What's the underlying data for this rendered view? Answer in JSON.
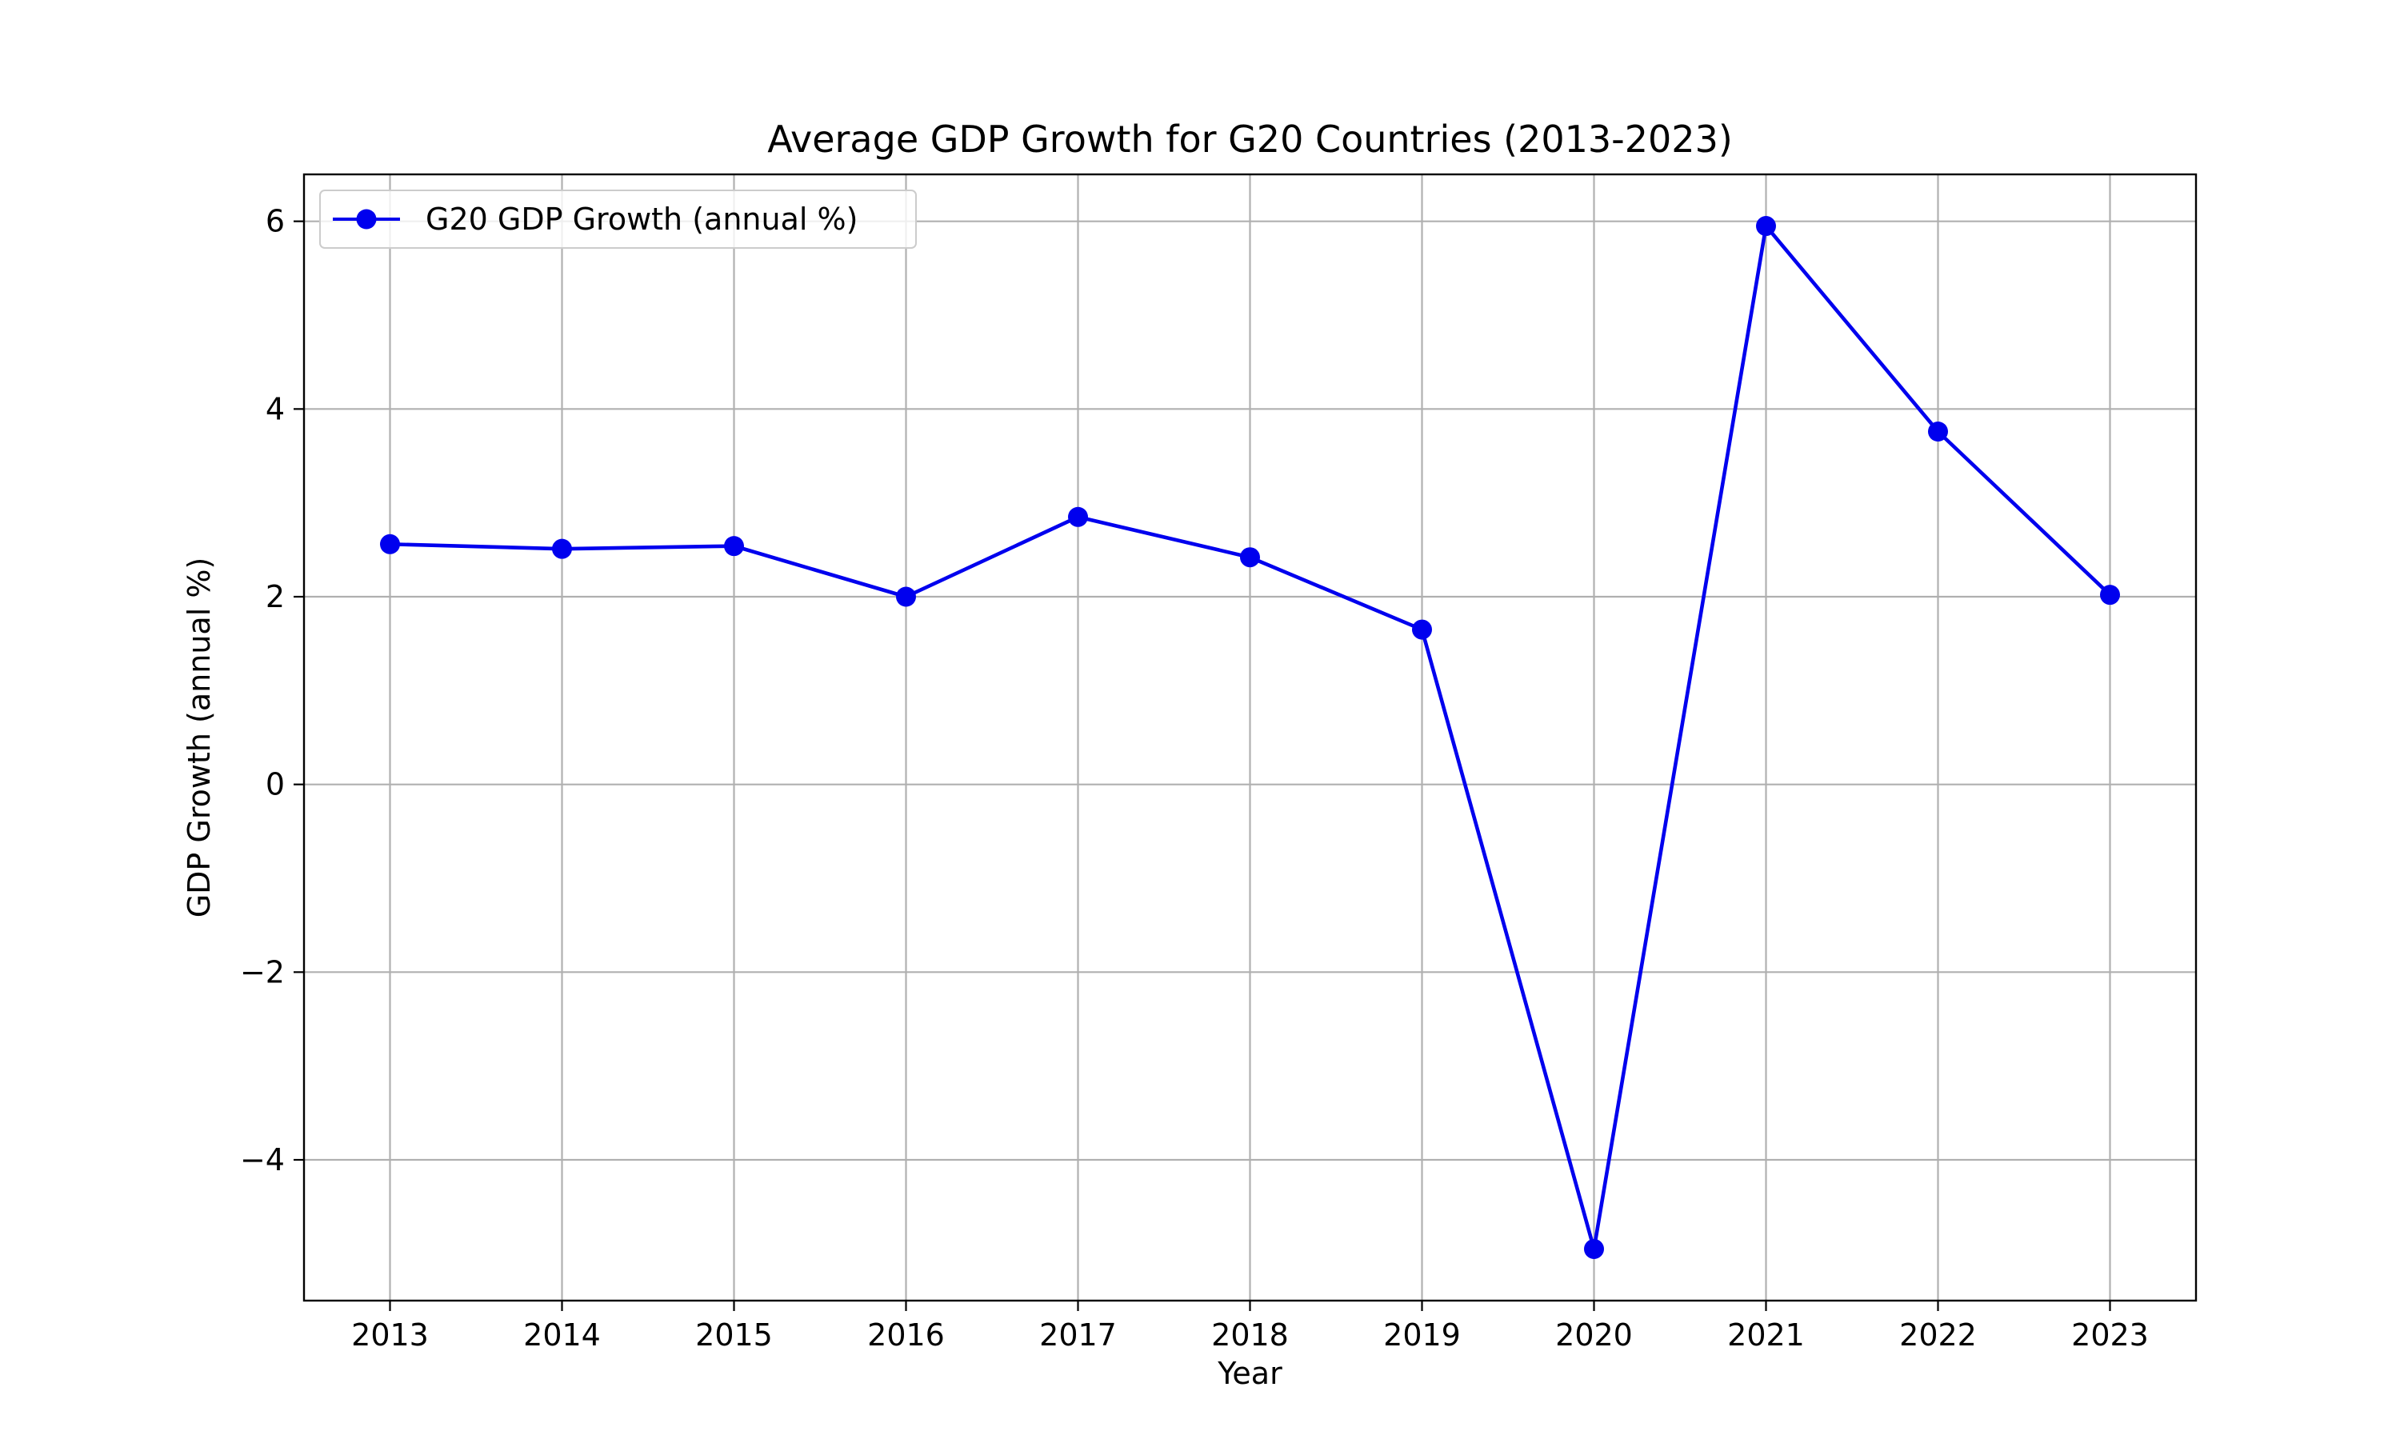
{
  "chart_data": {
    "type": "line",
    "title": "Average GDP Growth for G20 Countries (2013-2023)",
    "xlabel": "Year",
    "ylabel": "GDP Growth (annual %)",
    "x": [
      2013,
      2014,
      2015,
      2016,
      2017,
      2018,
      2019,
      2020,
      2021,
      2022,
      2023
    ],
    "x_tick_labels": [
      "2013",
      "2014",
      "2015",
      "2016",
      "2017",
      "2018",
      "2019",
      "2020",
      "2021",
      "2022",
      "2023"
    ],
    "series": [
      {
        "name": "G20 GDP Growth (annual %)",
        "color": "#0000ee",
        "marker": "circle",
        "values": [
          2.56,
          2.51,
          2.54,
          2.0,
          2.85,
          2.42,
          1.65,
          -4.95,
          5.95,
          3.76,
          2.02
        ]
      }
    ],
    "xlim": [
      2012.5,
      2023.5
    ],
    "ylim": [
      -5.5,
      6.5
    ],
    "y_ticks": [
      -4,
      -2,
      0,
      2,
      4,
      6
    ],
    "y_tick_labels": [
      "−4",
      "−2",
      "0",
      "2",
      "4",
      "6"
    ],
    "grid": true,
    "legend_position": "top-left"
  }
}
